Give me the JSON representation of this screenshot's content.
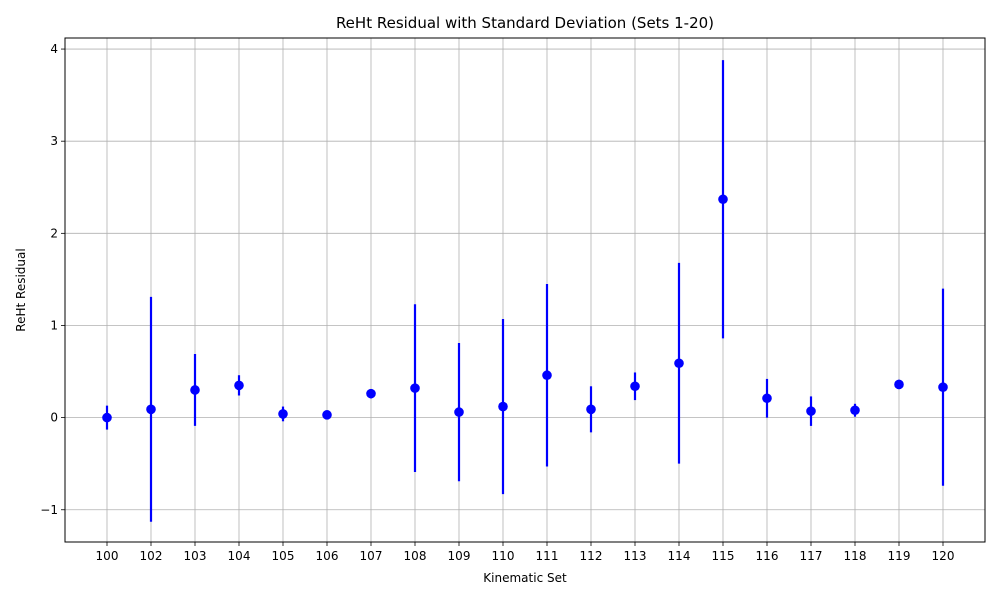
{
  "chart_data": {
    "type": "scatter",
    "title": "ReHt Residual with Standard Deviation (Sets 1-20)",
    "xlabel": "Kinematic Set",
    "ylabel": "ReHt Residual",
    "categories": [
      "100",
      "102",
      "103",
      "104",
      "105",
      "106",
      "107",
      "108",
      "109",
      "110",
      "111",
      "112",
      "113",
      "114",
      "115",
      "116",
      "117",
      "118",
      "119",
      "120"
    ],
    "series": [
      {
        "values": [
          0.0,
          0.09,
          0.3,
          0.35,
          0.04,
          0.03,
          0.26,
          0.32,
          0.06,
          0.12,
          0.46,
          0.09,
          0.34,
          0.59,
          2.37,
          0.21,
          0.07,
          0.08,
          0.36,
          0.33
        ],
        "std": [
          0.13,
          1.22,
          0.39,
          0.11,
          0.08,
          0.04,
          0.05,
          0.91,
          0.75,
          0.95,
          0.99,
          0.25,
          0.15,
          1.09,
          1.51,
          0.21,
          0.16,
          0.07,
          0.05,
          1.07
        ]
      }
    ],
    "ylim": [
      -1.35,
      4.12
    ],
    "yticks": [
      "−1",
      "0",
      "1",
      "2",
      "3",
      "4"
    ],
    "ytick_values": [
      -1,
      0,
      1,
      2,
      3,
      4
    ],
    "grid": true,
    "colors": {
      "marker": "#0000ff",
      "errorbar": "#0000ff",
      "grid": "#b0b0b0",
      "axis": "#000000"
    }
  }
}
